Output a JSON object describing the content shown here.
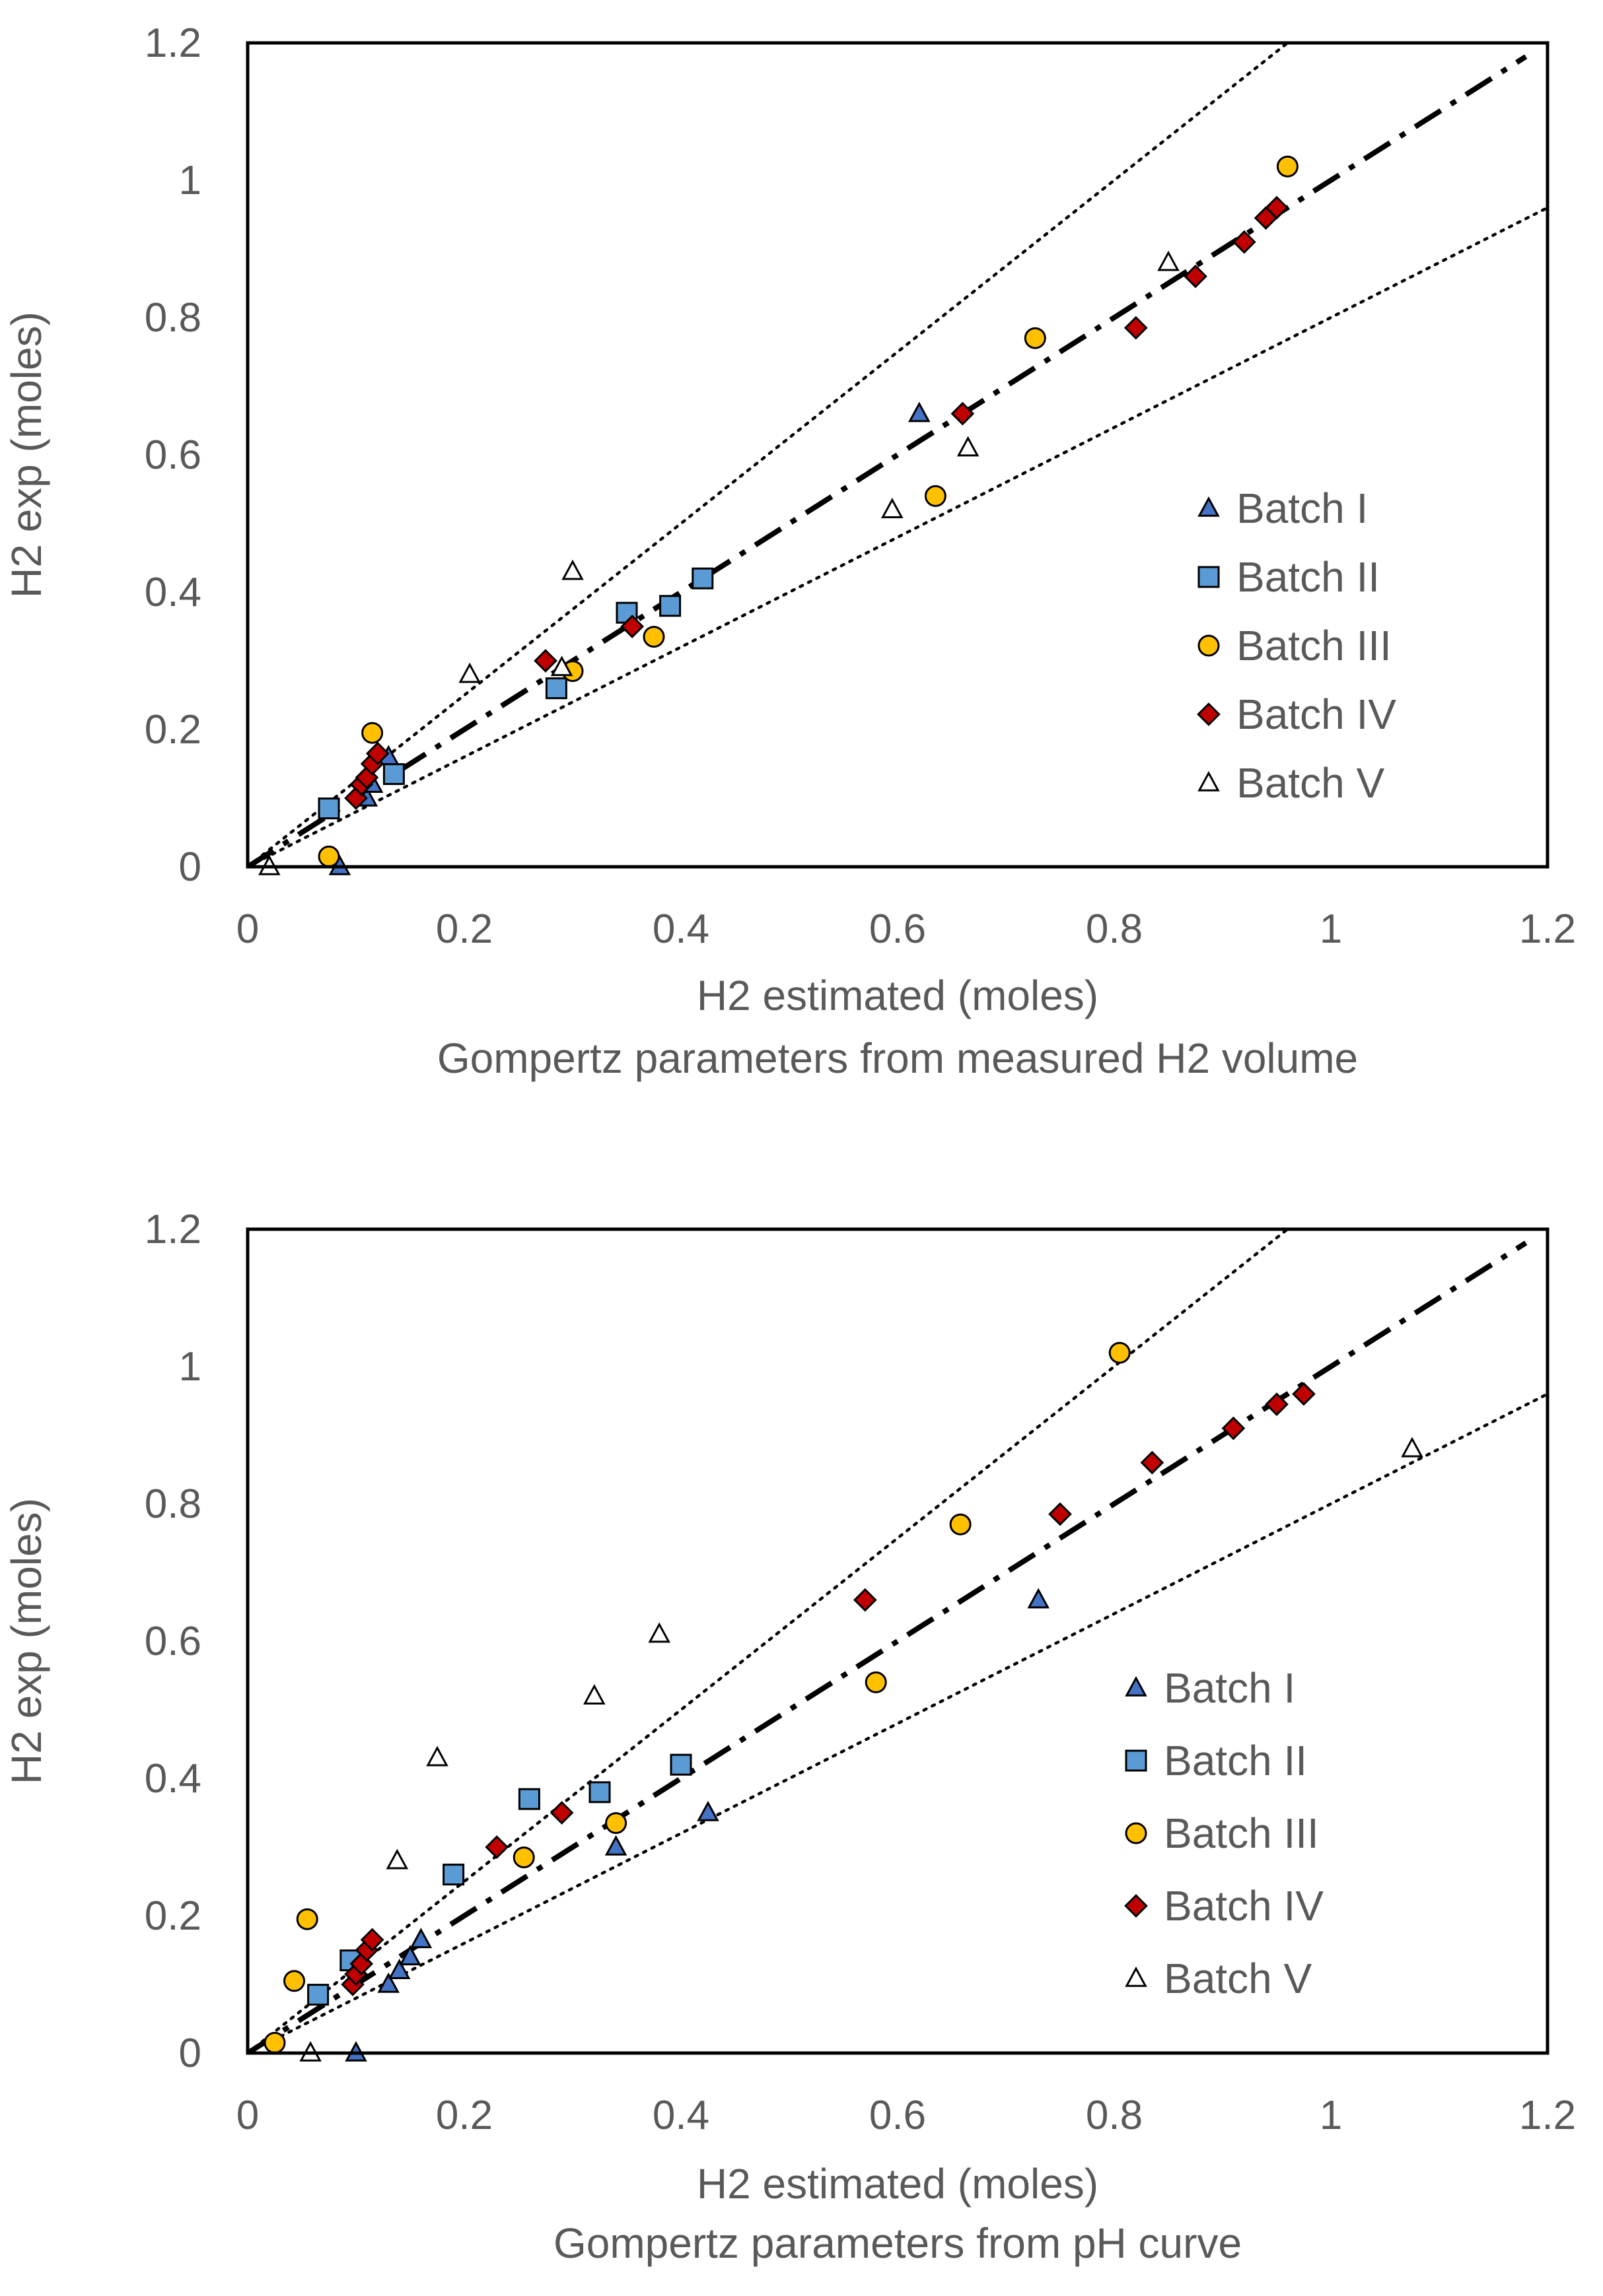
{
  "chart_data": [
    {
      "type": "scatter",
      "title": "",
      "caption": "Gompertz parameters from measured H2 volume",
      "xlabel": "H2 estimated (moles)",
      "ylabel": "H2 exp (moles)",
      "xlim": [
        0,
        1.2
      ],
      "ylim": [
        0,
        1.2
      ],
      "xticks": [
        "0",
        "0.2",
        "0.4",
        "0.6",
        "0.8",
        "1",
        "1.2"
      ],
      "yticks": [
        "0",
        "0.2",
        "0.4",
        "0.6",
        "0.8",
        "1",
        "1.2"
      ],
      "legend_position": "right",
      "reference_lines": [
        {
          "name": "identity",
          "style": "dash-dot",
          "slope": 1.0
        },
        {
          "name": "upper bound",
          "style": "dotted",
          "slope": 1.25
        },
        {
          "name": "lower bound",
          "style": "dotted",
          "slope": 0.8
        }
      ],
      "series": [
        {
          "name": "Batch I",
          "marker": "triangle",
          "color": "#4472C4",
          "x": [
            0.085,
            0.11,
            0.115,
            0.13,
            0.62
          ],
          "y": [
            0.0,
            0.1,
            0.12,
            0.16,
            0.66
          ]
        },
        {
          "name": "Batch II",
          "marker": "square",
          "color": "#5B9BD5",
          "x": [
            0.075,
            0.135,
            0.285,
            0.35,
            0.39,
            0.42
          ],
          "y": [
            0.085,
            0.135,
            0.26,
            0.37,
            0.38,
            0.42
          ]
        },
        {
          "name": "Batch III",
          "marker": "circle",
          "color": "#FFC000",
          "x": [
            0.075,
            0.115,
            0.3,
            0.375,
            0.635,
            0.727,
            0.96
          ],
          "y": [
            0.015,
            0.195,
            0.285,
            0.335,
            0.54,
            0.77,
            1.02
          ]
        },
        {
          "name": "Batch IV",
          "marker": "diamond",
          "color": "#C00000",
          "x": [
            0.1,
            0.105,
            0.11,
            0.115,
            0.12,
            0.275,
            0.355,
            0.66,
            0.82,
            0.875,
            0.92,
            0.94,
            0.95
          ],
          "y": [
            0.1,
            0.12,
            0.13,
            0.15,
            0.165,
            0.3,
            0.35,
            0.66,
            0.785,
            0.86,
            0.91,
            0.945,
            0.96
          ]
        },
        {
          "name": "Batch V",
          "marker": "triangle-open",
          "color": "#ffffff",
          "x": [
            0.02,
            0.205,
            0.29,
            0.3,
            0.595,
            0.665,
            0.85
          ],
          "y": [
            0.0,
            0.28,
            0.29,
            0.43,
            0.52,
            0.61,
            0.88
          ]
        }
      ]
    },
    {
      "type": "scatter",
      "title": "",
      "caption": "Gompertz parameters from pH curve",
      "xlabel": "H2 estimated (moles)",
      "ylabel": "H2 exp (moles)",
      "xlim": [
        0,
        1.2
      ],
      "ylim": [
        0,
        1.2
      ],
      "xticks": [
        "0",
        "0.2",
        "0.4",
        "0.6",
        "0.8",
        "1",
        "1.2"
      ],
      "yticks": [
        "0",
        "0.2",
        "0.4",
        "0.6",
        "0.8",
        "1",
        "1.2"
      ],
      "legend_position": "right",
      "reference_lines": [
        {
          "name": "identity",
          "style": "dash-dot",
          "slope": 1.0
        },
        {
          "name": "upper bound",
          "style": "dotted",
          "slope": 1.25
        },
        {
          "name": "lower bound",
          "style": "dotted",
          "slope": 0.8
        }
      ],
      "series": [
        {
          "name": "Batch I",
          "marker": "triangle",
          "color": "#4472C4",
          "x": [
            0.1,
            0.13,
            0.14,
            0.15,
            0.16,
            0.34,
            0.425,
            0.73
          ],
          "y": [
            0.0,
            0.1,
            0.12,
            0.14,
            0.165,
            0.3,
            0.35,
            0.66
          ]
        },
        {
          "name": "Batch II",
          "marker": "square",
          "color": "#5B9BD5",
          "x": [
            0.065,
            0.095,
            0.19,
            0.26,
            0.325,
            0.4
          ],
          "y": [
            0.085,
            0.135,
            0.26,
            0.37,
            0.38,
            0.42
          ]
        },
        {
          "name": "Batch III",
          "marker": "circle",
          "color": "#FFC000",
          "x": [
            0.025,
            0.043,
            0.055,
            0.255,
            0.34,
            0.58,
            0.658,
            0.805
          ],
          "y": [
            0.015,
            0.105,
            0.195,
            0.285,
            0.335,
            0.54,
            0.77,
            1.02
          ]
        },
        {
          "name": "Batch IV",
          "marker": "diamond",
          "color": "#C00000",
          "x": [
            0.097,
            0.1,
            0.105,
            0.11,
            0.115,
            0.23,
            0.29,
            0.57,
            0.75,
            0.835,
            0.91,
            0.95,
            0.975
          ],
          "y": [
            0.1,
            0.115,
            0.13,
            0.15,
            0.165,
            0.3,
            0.35,
            0.66,
            0.785,
            0.86,
            0.91,
            0.945,
            0.96
          ]
        },
        {
          "name": "Batch V",
          "marker": "triangle-open",
          "color": "#ffffff",
          "x": [
            0.058,
            0.138,
            0.175,
            0.32,
            0.38,
            1.075
          ],
          "y": [
            0.0,
            0.28,
            0.43,
            0.52,
            0.61,
            0.88
          ]
        }
      ]
    }
  ]
}
